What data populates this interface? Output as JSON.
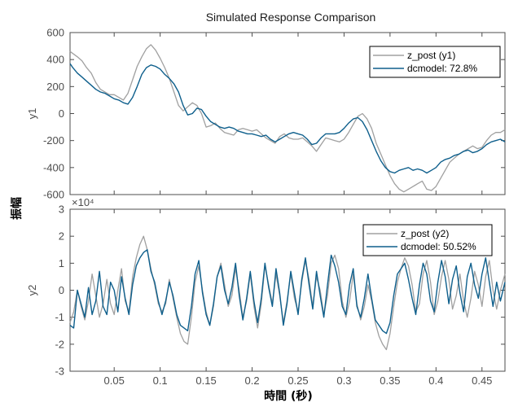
{
  "figure": {
    "title": "Simulated Response Comparison",
    "common_ylabel": "振幅",
    "common_xlabel": "時間 (秒)"
  },
  "colors": {
    "measured": "#a0a0a0",
    "model": "#0e5f8c",
    "axes": "#4d4d4d"
  },
  "chart_data": [
    {
      "type": "line",
      "ylabel": "y1",
      "ylim": [
        -600,
        600
      ],
      "yticks": [
        -600,
        -400,
        -200,
        0,
        200,
        400,
        600
      ],
      "ytick_labels": [
        "-600",
        "-400",
        "-200",
        "0",
        "200",
        "400",
        "600"
      ],
      "xlim": [
        0.002,
        0.475
      ],
      "xticks": [
        0.05,
        0.1,
        0.15,
        0.2,
        0.25,
        0.3,
        0.35,
        0.4,
        0.45
      ],
      "xtick_labels": [],
      "exponent": "",
      "grid": false,
      "legend_position": "top-right",
      "legend_entries": [
        "z_post (y1)",
        "dcmodel: 72.8%"
      ],
      "series": [
        {
          "name": "z_post (y1)",
          "x": [
            0.002,
            0.01,
            0.015,
            0.02,
            0.025,
            0.03,
            0.035,
            0.04,
            0.045,
            0.05,
            0.055,
            0.06,
            0.065,
            0.07,
            0.075,
            0.08,
            0.085,
            0.09,
            0.095,
            0.1,
            0.105,
            0.11,
            0.115,
            0.12,
            0.125,
            0.13,
            0.135,
            0.14,
            0.145,
            0.15,
            0.155,
            0.16,
            0.165,
            0.17,
            0.175,
            0.18,
            0.185,
            0.19,
            0.195,
            0.2,
            0.205,
            0.21,
            0.215,
            0.22,
            0.225,
            0.23,
            0.235,
            0.24,
            0.245,
            0.25,
            0.255,
            0.26,
            0.265,
            0.27,
            0.275,
            0.28,
            0.285,
            0.29,
            0.295,
            0.3,
            0.305,
            0.31,
            0.315,
            0.32,
            0.325,
            0.33,
            0.335,
            0.34,
            0.345,
            0.35,
            0.355,
            0.36,
            0.365,
            0.37,
            0.375,
            0.38,
            0.385,
            0.39,
            0.395,
            0.4,
            0.405,
            0.41,
            0.415,
            0.42,
            0.425,
            0.43,
            0.435,
            0.44,
            0.445,
            0.45,
            0.455,
            0.46,
            0.465,
            0.47,
            0.475
          ],
          "y": [
            460,
            420,
            390,
            340,
            300,
            230,
            180,
            160,
            140,
            140,
            120,
            100,
            150,
            250,
            350,
            420,
            480,
            510,
            470,
            410,
            340,
            260,
            160,
            60,
            20,
            50,
            80,
            60,
            0,
            -100,
            -90,
            -70,
            -110,
            -140,
            -150,
            -160,
            -120,
            -110,
            -120,
            -130,
            -120,
            -150,
            -180,
            -200,
            -220,
            -170,
            -150,
            -180,
            -190,
            -190,
            -180,
            -210,
            -240,
            -280,
            -230,
            -180,
            -190,
            -200,
            -210,
            -190,
            -140,
            -80,
            -20,
            0,
            -40,
            -110,
            -220,
            -300,
            -380,
            -460,
            -520,
            -560,
            -580,
            -560,
            -540,
            -520,
            -500,
            -560,
            -570,
            -540,
            -480,
            -420,
            -360,
            -330,
            -300,
            -280,
            -260,
            -240,
            -260,
            -250,
            -200,
            -160,
            -140,
            -140,
            -120
          ]
        },
        {
          "name": "dcmodel: 72.8%",
          "x": [
            0.002,
            0.005,
            0.01,
            0.015,
            0.02,
            0.025,
            0.03,
            0.035,
            0.04,
            0.045,
            0.05,
            0.055,
            0.06,
            0.065,
            0.07,
            0.075,
            0.08,
            0.085,
            0.09,
            0.095,
            0.1,
            0.105,
            0.11,
            0.115,
            0.12,
            0.125,
            0.13,
            0.135,
            0.14,
            0.145,
            0.15,
            0.155,
            0.16,
            0.165,
            0.17,
            0.175,
            0.18,
            0.185,
            0.19,
            0.195,
            0.2,
            0.205,
            0.21,
            0.215,
            0.22,
            0.225,
            0.23,
            0.235,
            0.24,
            0.245,
            0.25,
            0.255,
            0.26,
            0.265,
            0.27,
            0.275,
            0.28,
            0.285,
            0.29,
            0.295,
            0.3,
            0.305,
            0.31,
            0.315,
            0.32,
            0.325,
            0.33,
            0.335,
            0.34,
            0.345,
            0.35,
            0.355,
            0.36,
            0.365,
            0.37,
            0.375,
            0.38,
            0.385,
            0.39,
            0.395,
            0.4,
            0.405,
            0.41,
            0.415,
            0.42,
            0.425,
            0.43,
            0.435,
            0.44,
            0.445,
            0.45,
            0.455,
            0.46,
            0.465,
            0.47,
            0.475
          ],
          "y": [
            370,
            340,
            300,
            270,
            240,
            210,
            180,
            160,
            150,
            130,
            110,
            100,
            80,
            70,
            120,
            200,
            290,
            340,
            360,
            350,
            330,
            290,
            260,
            220,
            160,
            60,
            -10,
            0,
            40,
            30,
            -20,
            -60,
            -80,
            -100,
            -110,
            -100,
            -110,
            -130,
            -140,
            -150,
            -150,
            -160,
            -170,
            -160,
            -190,
            -210,
            -190,
            -170,
            -150,
            -140,
            -150,
            -160,
            -190,
            -230,
            -220,
            -180,
            -150,
            -150,
            -150,
            -140,
            -110,
            -70,
            -40,
            -30,
            -60,
            -120,
            -200,
            -280,
            -350,
            -400,
            -430,
            -440,
            -420,
            -410,
            -400,
            -420,
            -410,
            -420,
            -440,
            -420,
            -400,
            -360,
            -340,
            -330,
            -310,
            -300,
            -280,
            -270,
            -290,
            -280,
            -260,
            -230,
            -210,
            -200,
            -190,
            -210
          ]
        }
      ]
    },
    {
      "type": "line",
      "ylabel": "y2",
      "ylim": [
        -3,
        3
      ],
      "yticks": [
        -3,
        -2,
        -1,
        0,
        1,
        2,
        3
      ],
      "ytick_labels": [
        "-3",
        "-2",
        "-1",
        "0",
        "1",
        "2",
        "3"
      ],
      "xlim": [
        0.002,
        0.475
      ],
      "xticks": [
        0.05,
        0.1,
        0.15,
        0.2,
        0.25,
        0.3,
        0.35,
        0.4,
        0.45
      ],
      "xtick_labels": [
        "0.05",
        "0.1",
        "0.15",
        "0.2",
        "0.25",
        "0.3",
        "0.35",
        "0.4",
        "0.45"
      ],
      "exponent": "×10⁴",
      "grid": false,
      "legend_position": "top-right",
      "legend_entries": [
        "z_post (y2)",
        "dcmodel: 50.52%"
      ],
      "series": [
        {
          "name": "z_post (y2)",
          "x": [
            0.002,
            0.006,
            0.01,
            0.014,
            0.018,
            0.022,
            0.026,
            0.03,
            0.034,
            0.038,
            0.042,
            0.046,
            0.05,
            0.054,
            0.058,
            0.062,
            0.066,
            0.07,
            0.074,
            0.078,
            0.082,
            0.086,
            0.09,
            0.094,
            0.098,
            0.102,
            0.106,
            0.11,
            0.114,
            0.118,
            0.122,
            0.126,
            0.13,
            0.134,
            0.138,
            0.142,
            0.146,
            0.15,
            0.154,
            0.158,
            0.162,
            0.166,
            0.17,
            0.174,
            0.178,
            0.182,
            0.186,
            0.19,
            0.194,
            0.198,
            0.202,
            0.206,
            0.21,
            0.214,
            0.218,
            0.222,
            0.226,
            0.23,
            0.234,
            0.238,
            0.242,
            0.246,
            0.25,
            0.254,
            0.258,
            0.262,
            0.266,
            0.27,
            0.274,
            0.278,
            0.282,
            0.286,
            0.29,
            0.294,
            0.298,
            0.302,
            0.306,
            0.31,
            0.314,
            0.318,
            0.322,
            0.326,
            0.33,
            0.334,
            0.338,
            0.342,
            0.346,
            0.35,
            0.354,
            0.358,
            0.362,
            0.366,
            0.37,
            0.374,
            0.378,
            0.382,
            0.386,
            0.39,
            0.394,
            0.398,
            0.402,
            0.406,
            0.41,
            0.414,
            0.418,
            0.422,
            0.426,
            0.43,
            0.434,
            0.438,
            0.442,
            0.446,
            0.45,
            0.454,
            0.458,
            0.462,
            0.466,
            0.47,
            0.475
          ],
          "y": [
            -1.2,
            -0.8,
            0.0,
            -0.6,
            -1.1,
            -0.4,
            0.6,
            -0.2,
            -1.0,
            -0.5,
            0.4,
            -0.5,
            -0.9,
            0.0,
            0.8,
            -0.4,
            -0.8,
            0.5,
            1.2,
            1.7,
            2.0,
            1.5,
            0.8,
            0.2,
            -0.5,
            -0.8,
            -0.5,
            0.4,
            -0.3,
            -1.0,
            -1.6,
            -1.9,
            -2.0,
            -1.0,
            0.3,
            0.9,
            0.0,
            -0.8,
            -1.3,
            -0.6,
            0.5,
            1.0,
            0.2,
            -0.6,
            -0.2,
            0.8,
            0.0,
            -1.0,
            -0.4,
            0.6,
            -0.6,
            -1.4,
            -0.5,
            0.9,
            0.2,
            -0.5,
            0.6,
            -0.2,
            -1.2,
            -0.4,
            0.6,
            -0.3,
            -0.8,
            0.3,
            1.1,
            0.4,
            -0.6,
            0.5,
            0.0,
            -0.9,
            -0.2,
            1.0,
            1.3,
            0.8,
            -0.4,
            -1.0,
            -0.4,
            0.6,
            -0.5,
            -1.1,
            -0.6,
            0.2,
            -0.4,
            -1.2,
            -1.7,
            -2.0,
            -2.2,
            -1.6,
            -0.6,
            0.3,
            0.8,
            1.2,
            0.9,
            0.2,
            -0.8,
            -0.5,
            0.6,
            1.1,
            0.3,
            -0.9,
            -0.4,
            0.5,
            1.1,
            0.4,
            -0.7,
            -0.2,
            0.6,
            -0.4,
            -1.0,
            -0.3,
            0.7,
            0.2,
            -0.6,
            0.5,
            1.1,
            0.0,
            -0.7,
            0.0,
            0.6
          ]
        },
        {
          "name": "dcmodel: 50.52%",
          "x": [
            0.002,
            0.006,
            0.01,
            0.014,
            0.018,
            0.022,
            0.026,
            0.03,
            0.034,
            0.038,
            0.042,
            0.046,
            0.05,
            0.054,
            0.058,
            0.062,
            0.066,
            0.07,
            0.074,
            0.078,
            0.082,
            0.086,
            0.09,
            0.094,
            0.098,
            0.102,
            0.106,
            0.11,
            0.114,
            0.118,
            0.122,
            0.126,
            0.13,
            0.134,
            0.138,
            0.142,
            0.146,
            0.15,
            0.154,
            0.158,
            0.162,
            0.166,
            0.17,
            0.174,
            0.178,
            0.182,
            0.186,
            0.19,
            0.194,
            0.198,
            0.202,
            0.206,
            0.21,
            0.214,
            0.218,
            0.222,
            0.226,
            0.23,
            0.234,
            0.238,
            0.242,
            0.246,
            0.25,
            0.254,
            0.258,
            0.262,
            0.266,
            0.27,
            0.274,
            0.278,
            0.282,
            0.286,
            0.29,
            0.294,
            0.298,
            0.302,
            0.306,
            0.31,
            0.314,
            0.318,
            0.322,
            0.326,
            0.33,
            0.334,
            0.338,
            0.342,
            0.346,
            0.35,
            0.354,
            0.358,
            0.362,
            0.366,
            0.37,
            0.374,
            0.378,
            0.382,
            0.386,
            0.39,
            0.394,
            0.398,
            0.402,
            0.406,
            0.41,
            0.414,
            0.418,
            0.422,
            0.426,
            0.43,
            0.434,
            0.438,
            0.442,
            0.446,
            0.45,
            0.454,
            0.458,
            0.462,
            0.466,
            0.47,
            0.475
          ],
          "y": [
            -1.3,
            -1.4,
            0.0,
            -0.5,
            -1.0,
            0.1,
            -0.9,
            -0.4,
            0.7,
            -0.6,
            -0.9,
            0.3,
            0.0,
            -0.8,
            0.5,
            -0.3,
            -0.9,
            0.2,
            0.9,
            1.2,
            1.4,
            1.5,
            0.7,
            0.3,
            -0.4,
            -0.9,
            -0.4,
            0.3,
            -0.2,
            -0.9,
            -1.3,
            -1.4,
            -1.5,
            -0.6,
            0.6,
            1.1,
            -0.1,
            -0.9,
            -1.3,
            -0.5,
            0.5,
            0.9,
            0.0,
            -0.5,
            0.1,
            1.0,
            -0.2,
            -1.1,
            -0.3,
            0.7,
            -0.4,
            -1.2,
            -0.3,
            1.0,
            0.1,
            -0.6,
            0.8,
            -0.1,
            -1.3,
            -0.5,
            0.7,
            -0.1,
            -0.9,
            0.4,
            1.2,
            0.2,
            -0.7,
            0.7,
            -0.2,
            -1.0,
            0.2,
            1.3,
            0.9,
            0.3,
            -0.6,
            -0.9,
            0.2,
            0.8,
            -0.6,
            -1.0,
            -0.3,
            0.6,
            -0.3,
            -1.1,
            -1.3,
            -1.5,
            -1.6,
            -1.2,
            -0.2,
            0.6,
            0.8,
            1.0,
            0.4,
            -0.3,
            -0.9,
            0.2,
            1.0,
            0.6,
            -0.4,
            -0.8,
            0.3,
            1.1,
            0.5,
            -0.5,
            0.4,
            0.9,
            -0.1,
            -0.8,
            0.5,
            1.0,
            0.2,
            -0.3,
            0.6,
            1.2,
            0.3,
            -0.6,
            0.3,
            -0.4,
            0.3
          ]
        }
      ]
    }
  ]
}
